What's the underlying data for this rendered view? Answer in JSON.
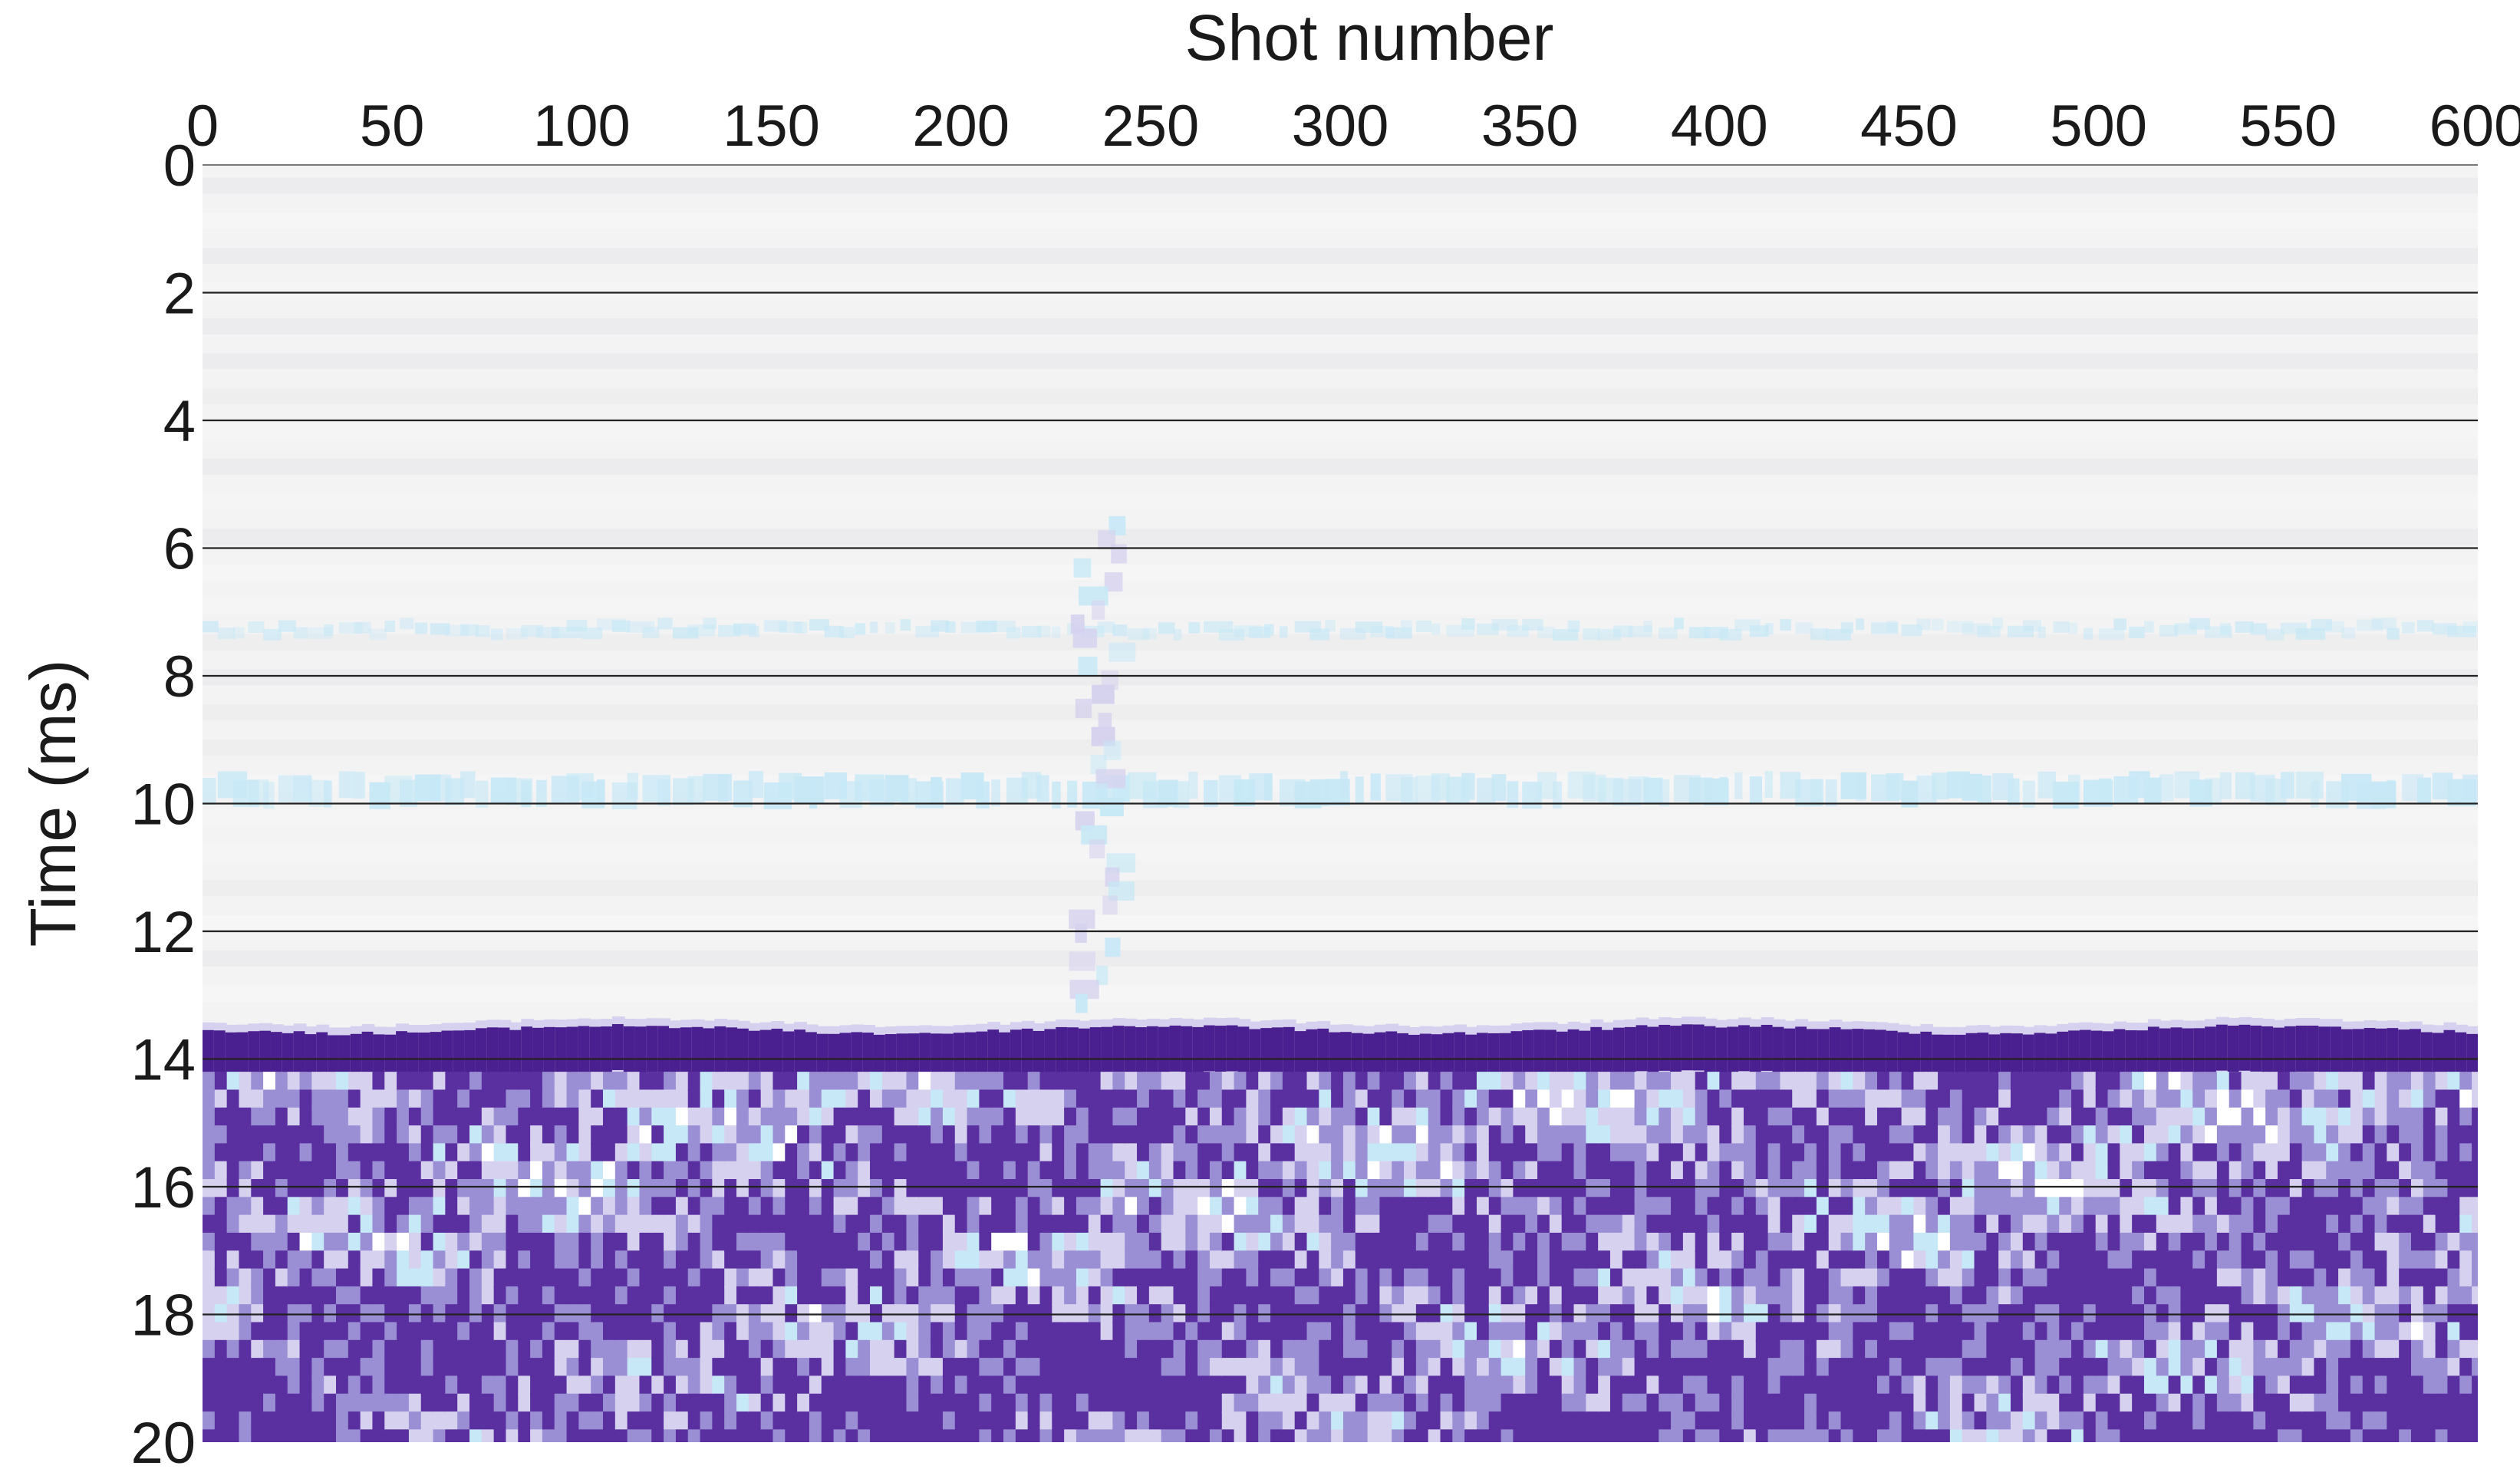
{
  "chart_data": {
    "type": "heatmap",
    "title": "",
    "xlabel": "Shot number",
    "ylabel": "Time  (ms)",
    "xlim": [
      0,
      600
    ],
    "ylim": [
      0,
      20
    ],
    "y_inverted": true,
    "x_axis_position": "top",
    "x_ticks": [
      "0",
      "50",
      "100",
      "150",
      "200",
      "250",
      "300",
      "350",
      "400",
      "450",
      "500",
      "550",
      "600"
    ],
    "y_ticks": [
      "0",
      "2",
      "4",
      "6",
      "8",
      "10",
      "12",
      "14",
      "16",
      "18",
      "20"
    ],
    "grid": "horizontal",
    "colors": {
      "background": "#f3f3f4",
      "light_band": "#c7e8f6",
      "pale_purple": "#d5d1ee",
      "mid_purple": "#9a8fd4",
      "dark_purple": "#5a2f9f",
      "deep_purple": "#4a1f8f",
      "grid_line": "#222222"
    },
    "features": [
      {
        "label": "faint reflection",
        "time_ms": 7.3
      },
      {
        "label": "reflection",
        "time_ms": 9.7
      },
      {
        "label": "strong reflection",
        "time_ms": 13.9
      },
      {
        "label": "vertical anomaly",
        "shot": 240,
        "time_range_ms": [
          5.5,
          13
        ]
      },
      {
        "label": "noisy zone",
        "time_range_ms": [
          14.2,
          20
        ]
      }
    ]
  }
}
